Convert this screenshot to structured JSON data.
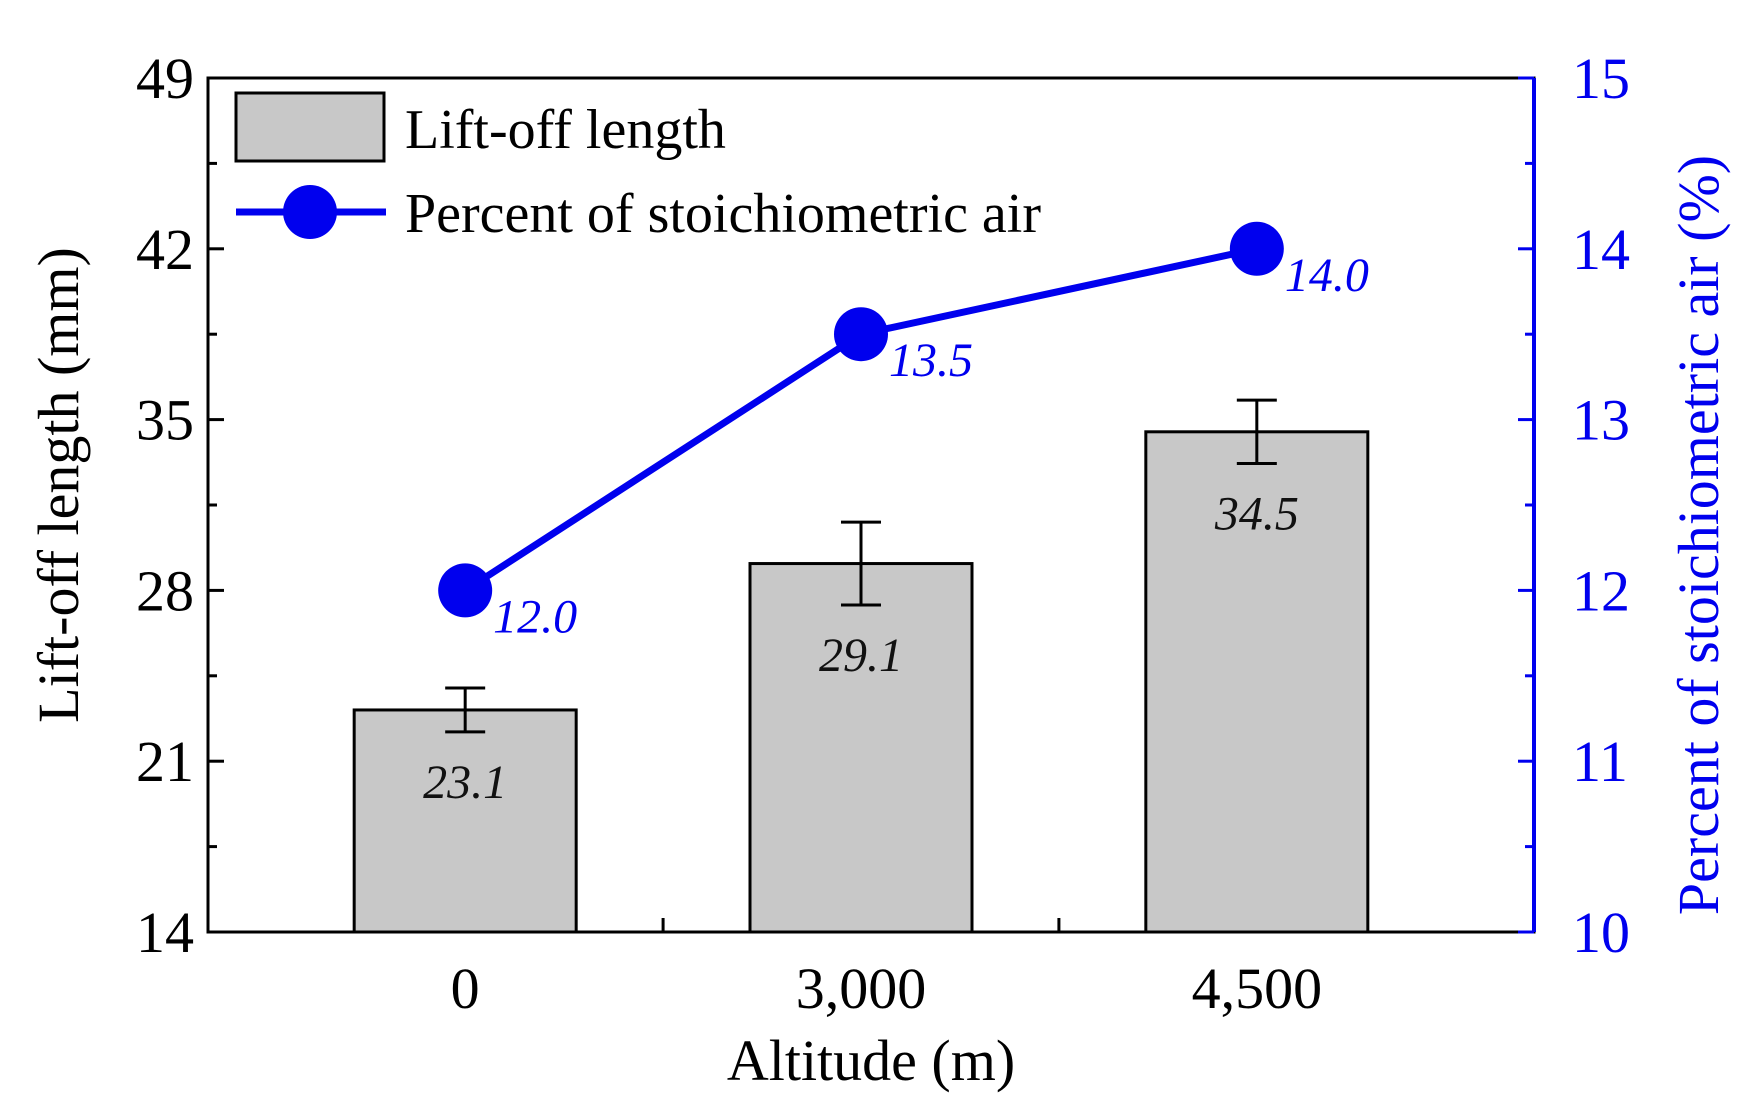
{
  "chart_data": {
    "type": "bar",
    "title": "",
    "xlabel": "Altitude (m)",
    "ylabel": "Lift-off length (mm)",
    "y2label": "Percent of stoichiometric air (%)",
    "categories": [
      "0",
      "3,000",
      "4,500"
    ],
    "ylim": [
      14,
      49
    ],
    "y_ticks": [
      14,
      21,
      28,
      35,
      42,
      49
    ],
    "y2lim": [
      10,
      15
    ],
    "y2_ticks": [
      10,
      11,
      12,
      13,
      14,
      15
    ],
    "legend_position": "top-left",
    "series": [
      {
        "name": "Lift-off length",
        "type": "bar",
        "axis": "left",
        "values": [
          23.1,
          29.1,
          34.5
        ],
        "value_labels": [
          "23.1",
          "29.1",
          "34.5"
        ],
        "error": [
          0.9,
          1.7,
          1.3
        ],
        "color": "#c8c8c8"
      },
      {
        "name": "Percent of stoichiometric air",
        "type": "line",
        "axis": "right",
        "values": [
          12.0,
          13.5,
          14.0
        ],
        "value_labels": [
          "12.0",
          "13.5",
          "14.0"
        ],
        "color": "#0000ee"
      }
    ],
    "colors": {
      "axis_left": "#000000",
      "axis_right": "#0000ee",
      "bar_fill": "#c8c8c8",
      "line": "#0000ee"
    }
  }
}
